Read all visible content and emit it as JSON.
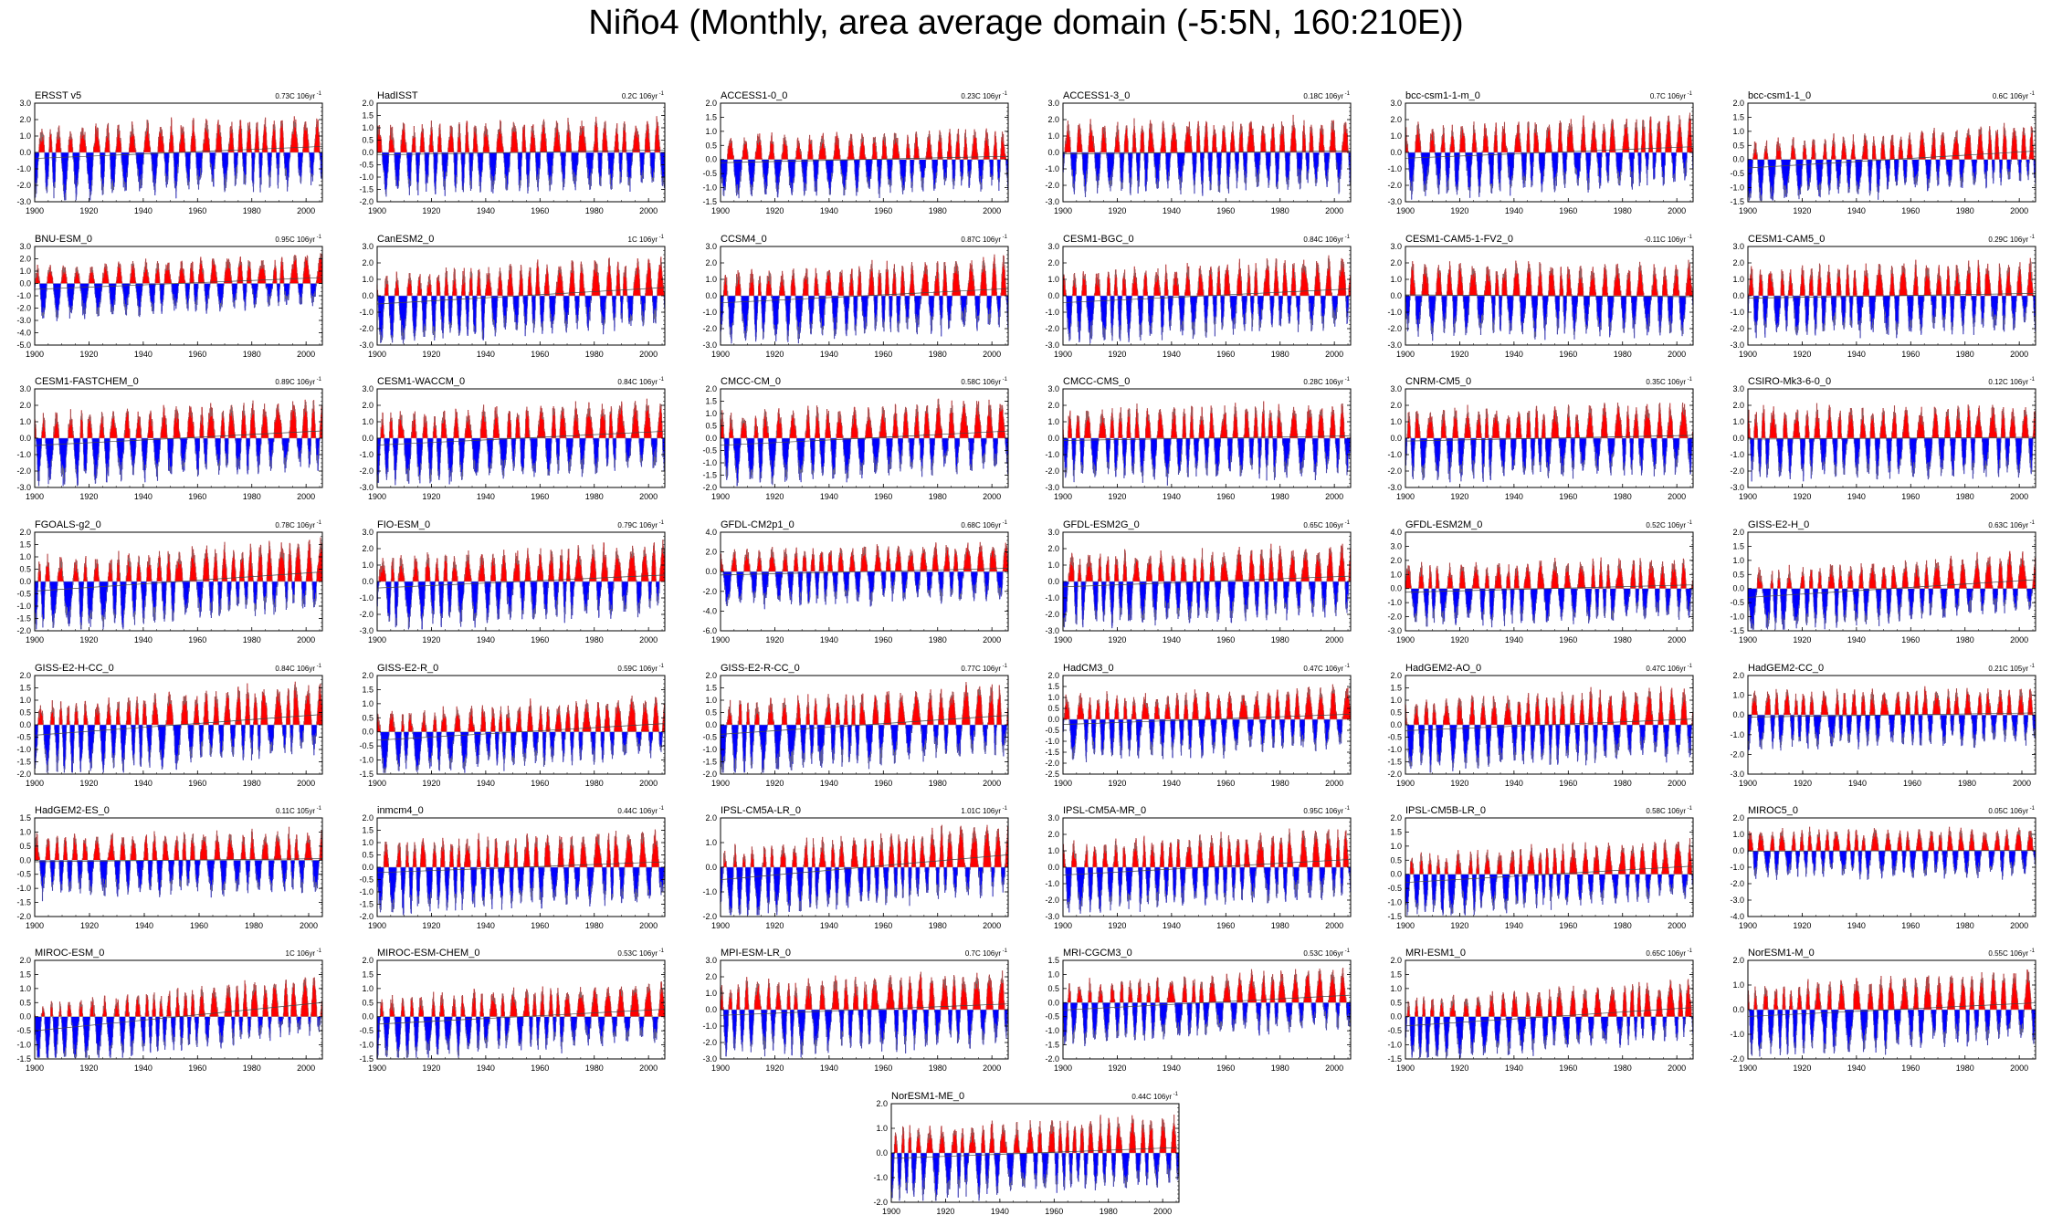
{
  "title": "Niño4 (Monthly, area average domain (-5:5N, 160:210E))",
  "colors": {
    "positive": "#ff0000",
    "negative": "#0000ff",
    "line": "#000000",
    "zero": "#000000"
  },
  "x_ticks": [
    "1900",
    "1920",
    "1940",
    "1960",
    "1980",
    "2000"
  ],
  "chart_data": [
    {
      "type": "area",
      "name": "ERSST v5",
      "trend": "0.73C 106yr",
      "yticks": [
        "3.0",
        "2.0",
        "1.0",
        "0.0",
        "-1.0",
        "-2.0",
        "-3.0"
      ],
      "ylim": [
        -3,
        3
      ],
      "xlim": [
        1900,
        2006
      ]
    },
    {
      "type": "area",
      "name": "HadISST",
      "trend": "0.2C 106yr",
      "yticks": [
        "2.0",
        "1.5",
        "1.0",
        "0.5",
        "0.0",
        "-0.5",
        "-1.0",
        "-1.5",
        "-2.0"
      ],
      "ylim": [
        -2,
        2
      ],
      "xlim": [
        1900,
        2006
      ]
    },
    {
      "type": "area",
      "name": "ACCESS1-0_0",
      "trend": "0.23C 106yr",
      "yticks": [
        "2.0",
        "1.5",
        "1.0",
        "0.5",
        "0.0",
        "-0.5",
        "-1.0",
        "-1.5"
      ],
      "ylim": [
        -1.5,
        2
      ],
      "xlim": [
        1900,
        2006
      ]
    },
    {
      "type": "area",
      "name": "ACCESS1-3_0",
      "trend": "0.18C 106yr",
      "yticks": [
        "3.0",
        "2.0",
        "1.0",
        "0.0",
        "-1.0",
        "-2.0",
        "-3.0"
      ],
      "ylim": [
        -3,
        3
      ],
      "xlim": [
        1900,
        2006
      ]
    },
    {
      "type": "area",
      "name": "bcc-csm1-1-m_0",
      "trend": "0.7C 106yr",
      "yticks": [
        "3.0",
        "2.0",
        "1.0",
        "0.0",
        "-1.0",
        "-2.0",
        "-3.0"
      ],
      "ylim": [
        -3,
        3
      ],
      "xlim": [
        1900,
        2006
      ]
    },
    {
      "type": "area",
      "name": "bcc-csm1-1_0",
      "trend": "0.6C 106yr",
      "yticks": [
        "2.0",
        "1.5",
        "1.0",
        "0.5",
        "0.0",
        "-0.5",
        "-1.0",
        "-1.5"
      ],
      "ylim": [
        -1.5,
        2
      ],
      "xlim": [
        1900,
        2006
      ]
    },
    {
      "type": "area",
      "name": "BNU-ESM_0",
      "trend": "0.95C 106yr",
      "yticks": [
        "3.0",
        "2.0",
        "1.0",
        "0.0",
        "-1.0",
        "-2.0",
        "-3.0",
        "-4.0",
        "-5.0"
      ],
      "ylim": [
        -5,
        3
      ],
      "xlim": [
        1900,
        2006
      ]
    },
    {
      "type": "area",
      "name": "CanESM2_0",
      "trend": "1C 106yr",
      "yticks": [
        "3.0",
        "2.0",
        "1.0",
        "0.0",
        "-1.0",
        "-2.0",
        "-3.0"
      ],
      "ylim": [
        -3,
        3
      ],
      "xlim": [
        1900,
        2006
      ]
    },
    {
      "type": "area",
      "name": "CCSM4_0",
      "trend": "0.87C 106yr",
      "yticks": [
        "3.0",
        "2.0",
        "1.0",
        "0.0",
        "-1.0",
        "-2.0",
        "-3.0"
      ],
      "ylim": [
        -3,
        3
      ],
      "xlim": [
        1900,
        2006
      ]
    },
    {
      "type": "area",
      "name": "CESM1-BGC_0",
      "trend": "0.84C 106yr",
      "yticks": [
        "3.0",
        "2.0",
        "1.0",
        "0.0",
        "-1.0",
        "-2.0",
        "-3.0"
      ],
      "ylim": [
        -3,
        3
      ],
      "xlim": [
        1900,
        2006
      ]
    },
    {
      "type": "area",
      "name": "CESM1-CAM5-1-FV2_0",
      "trend": "-0.11C 106yr",
      "yticks": [
        "3.0",
        "2.0",
        "1.0",
        "0.0",
        "-1.0",
        "-2.0",
        "-3.0"
      ],
      "ylim": [
        -3,
        3
      ],
      "xlim": [
        1900,
        2006
      ]
    },
    {
      "type": "area",
      "name": "CESM1-CAM5_0",
      "trend": "0.29C 106yr",
      "yticks": [
        "3.0",
        "2.0",
        "1.0",
        "0.0",
        "-1.0",
        "-2.0",
        "-3.0"
      ],
      "ylim": [
        -3,
        3
      ],
      "xlim": [
        1900,
        2006
      ]
    },
    {
      "type": "area",
      "name": "CESM1-FASTCHEM_0",
      "trend": "0.89C 106yr",
      "yticks": [
        "3.0",
        "2.0",
        "1.0",
        "0.0",
        "-1.0",
        "-2.0",
        "-3.0"
      ],
      "ylim": [
        -3,
        3
      ],
      "xlim": [
        1900,
        2006
      ]
    },
    {
      "type": "area",
      "name": "CESM1-WACCM_0",
      "trend": "0.84C 106yr",
      "yticks": [
        "3.0",
        "2.0",
        "1.0",
        "0.0",
        "-1.0",
        "-2.0",
        "-3.0"
      ],
      "ylim": [
        -3,
        3
      ],
      "xlim": [
        1900,
        2006
      ]
    },
    {
      "type": "area",
      "name": "CMCC-CM_0",
      "trend": "0.58C 106yr",
      "yticks": [
        "2.0",
        "1.5",
        "1.0",
        "0.5",
        "0.0",
        "-0.5",
        "-1.0",
        "-1.5",
        "-2.0"
      ],
      "ylim": [
        -2,
        2
      ],
      "xlim": [
        1900,
        2006
      ]
    },
    {
      "type": "area",
      "name": "CMCC-CMS_0",
      "trend": "0.28C 106yr",
      "yticks": [
        "3.0",
        "2.0",
        "1.0",
        "0.0",
        "-1.0",
        "-2.0",
        "-3.0"
      ],
      "ylim": [
        -3,
        3
      ],
      "xlim": [
        1900,
        2006
      ]
    },
    {
      "type": "area",
      "name": "CNRM-CM5_0",
      "trend": "0.35C 106yr",
      "yticks": [
        "3.0",
        "2.0",
        "1.0",
        "0.0",
        "-1.0",
        "-2.0",
        "-3.0"
      ],
      "ylim": [
        -3,
        3
      ],
      "xlim": [
        1900,
        2006
      ]
    },
    {
      "type": "area",
      "name": "CSIRO-Mk3-6-0_0",
      "trend": "0.12C 106yr",
      "yticks": [
        "3.0",
        "2.0",
        "1.0",
        "0.0",
        "-1.0",
        "-2.0",
        "-3.0"
      ],
      "ylim": [
        -3,
        3
      ],
      "xlim": [
        1900,
        2006
      ]
    },
    {
      "type": "area",
      "name": "FGOALS-g2_0",
      "trend": "0.78C 106yr",
      "yticks": [
        "2.0",
        "1.5",
        "1.0",
        "0.5",
        "0.0",
        "-0.5",
        "-1.0",
        "-1.5",
        "-2.0"
      ],
      "ylim": [
        -2,
        2
      ],
      "xlim": [
        1900,
        2006
      ]
    },
    {
      "type": "area",
      "name": "FIO-ESM_0",
      "trend": "0.79C 106yr",
      "yticks": [
        "3.0",
        "2.0",
        "1.0",
        "0.0",
        "-1.0",
        "-2.0",
        "-3.0"
      ],
      "ylim": [
        -3,
        3
      ],
      "xlim": [
        1900,
        2006
      ]
    },
    {
      "type": "area",
      "name": "GFDL-CM2p1_0",
      "trend": "0.68C 106yr",
      "yticks": [
        "4.0",
        "2.0",
        "0.0",
        "-2.0",
        "-4.0",
        "-6.0"
      ],
      "ylim": [
        -6,
        4
      ],
      "xlim": [
        1900,
        2006
      ]
    },
    {
      "type": "area",
      "name": "GFDL-ESM2G_0",
      "trend": "0.65C 106yr",
      "yticks": [
        "3.0",
        "2.0",
        "1.0",
        "0.0",
        "-1.0",
        "-2.0",
        "-3.0"
      ],
      "ylim": [
        -3,
        3
      ],
      "xlim": [
        1900,
        2006
      ]
    },
    {
      "type": "area",
      "name": "GFDL-ESM2M_0",
      "trend": "0.52C 106yr",
      "yticks": [
        "4.0",
        "3.0",
        "2.0",
        "1.0",
        "0.0",
        "-1.0",
        "-2.0",
        "-3.0"
      ],
      "ylim": [
        -3,
        4
      ],
      "xlim": [
        1900,
        2006
      ]
    },
    {
      "type": "area",
      "name": "GISS-E2-H_0",
      "trend": "0.63C 106yr",
      "yticks": [
        "2.0",
        "1.5",
        "1.0",
        "0.5",
        "0.0",
        "-0.5",
        "-1.0",
        "-1.5"
      ],
      "ylim": [
        -1.5,
        2
      ],
      "xlim": [
        1900,
        2006
      ]
    },
    {
      "type": "area",
      "name": "GISS-E2-H-CC_0",
      "trend": "0.84C 106yr",
      "yticks": [
        "2.0",
        "1.5",
        "1.0",
        "0.5",
        "0.0",
        "-0.5",
        "-1.0",
        "-1.5",
        "-2.0"
      ],
      "ylim": [
        -2,
        2
      ],
      "xlim": [
        1900,
        2006
      ]
    },
    {
      "type": "area",
      "name": "GISS-E2-R_0",
      "trend": "0.59C 106yr",
      "yticks": [
        "2.0",
        "1.5",
        "1.0",
        "0.5",
        "0.0",
        "-0.5",
        "-1.0",
        "-1.5"
      ],
      "ylim": [
        -1.5,
        2
      ],
      "xlim": [
        1900,
        2006
      ]
    },
    {
      "type": "area",
      "name": "GISS-E2-R-CC_0",
      "trend": "0.77C 106yr",
      "yticks": [
        "2.0",
        "1.5",
        "1.0",
        "0.5",
        "0.0",
        "-0.5",
        "-1.0",
        "-1.5",
        "-2.0"
      ],
      "ylim": [
        -2,
        2
      ],
      "xlim": [
        1900,
        2006
      ]
    },
    {
      "type": "area",
      "name": "HadCM3_0",
      "trend": "0.47C 106yr",
      "yticks": [
        "2.0",
        "1.5",
        "1.0",
        "0.5",
        "0.0",
        "-0.5",
        "-1.0",
        "-1.5",
        "-2.0",
        "-2.5"
      ],
      "ylim": [
        -2.5,
        2
      ],
      "xlim": [
        1900,
        2006
      ]
    },
    {
      "type": "area",
      "name": "HadGEM2-AO_0",
      "trend": "0.47C 106yr",
      "yticks": [
        "2.0",
        "1.5",
        "1.0",
        "0.5",
        "0.0",
        "-0.5",
        "-1.0",
        "-1.5",
        "-2.0"
      ],
      "ylim": [
        -2,
        2
      ],
      "xlim": [
        1900,
        2006
      ]
    },
    {
      "type": "area",
      "name": "HadGEM2-CC_0",
      "trend": "0.21C 105yr",
      "yticks": [
        "2.0",
        "1.0",
        "0.0",
        "-1.0",
        "-2.0",
        "-3.0"
      ],
      "ylim": [
        -3,
        2
      ],
      "xlim": [
        1900,
        2005
      ]
    },
    {
      "type": "area",
      "name": "HadGEM2-ES_0",
      "trend": "0.11C 105yr",
      "yticks": [
        "1.5",
        "1.0",
        "0.5",
        "0.0",
        "-0.5",
        "-1.0",
        "-1.5",
        "-2.0"
      ],
      "ylim": [
        -2,
        1.5
      ],
      "xlim": [
        1900,
        2005
      ]
    },
    {
      "type": "area",
      "name": "inmcm4_0",
      "trend": "0.44C 106yr",
      "yticks": [
        "2.0",
        "1.5",
        "1.0",
        "0.5",
        "0.0",
        "-0.5",
        "-1.0",
        "-1.5",
        "-2.0"
      ],
      "ylim": [
        -2,
        2
      ],
      "xlim": [
        1900,
        2006
      ]
    },
    {
      "type": "area",
      "name": "IPSL-CM5A-LR_0",
      "trend": "1.01C 106yr",
      "yticks": [
        "2.0",
        "1.0",
        "0.0",
        "-1.0",
        "-2.0"
      ],
      "ylim": [
        -2,
        2
      ],
      "xlim": [
        1900,
        2006
      ]
    },
    {
      "type": "area",
      "name": "IPSL-CM5A-MR_0",
      "trend": "0.95C 106yr",
      "yticks": [
        "3.0",
        "2.0",
        "1.0",
        "0.0",
        "-1.0",
        "-2.0",
        "-3.0"
      ],
      "ylim": [
        -3,
        3
      ],
      "xlim": [
        1900,
        2006
      ]
    },
    {
      "type": "area",
      "name": "IPSL-CM5B-LR_0",
      "trend": "0.58C 106yr",
      "yticks": [
        "2.0",
        "1.5",
        "1.0",
        "0.5",
        "0.0",
        "-0.5",
        "-1.0",
        "-1.5"
      ],
      "ylim": [
        -1.5,
        2
      ],
      "xlim": [
        1900,
        2006
      ]
    },
    {
      "type": "area",
      "name": "MIROC5_0",
      "trend": "0.05C 106yr",
      "yticks": [
        "2.0",
        "1.0",
        "0.0",
        "-1.0",
        "-2.0",
        "-3.0",
        "-4.0"
      ],
      "ylim": [
        -4,
        2
      ],
      "xlim": [
        1900,
        2006
      ]
    },
    {
      "type": "area",
      "name": "MIROC-ESM_0",
      "trend": "1C 106yr",
      "yticks": [
        "2.0",
        "1.5",
        "1.0",
        "0.5",
        "0.0",
        "-0.5",
        "-1.0",
        "-1.5"
      ],
      "ylim": [
        -1.5,
        2
      ],
      "xlim": [
        1900,
        2006
      ]
    },
    {
      "type": "area",
      "name": "MIROC-ESM-CHEM_0",
      "trend": "0.53C 106yr",
      "yticks": [
        "2.0",
        "1.5",
        "1.0",
        "0.5",
        "0.0",
        "-0.5",
        "-1.0",
        "-1.5"
      ],
      "ylim": [
        -1.5,
        2
      ],
      "xlim": [
        1900,
        2006
      ]
    },
    {
      "type": "area",
      "name": "MPI-ESM-LR_0",
      "trend": "0.7C 106yr",
      "yticks": [
        "3.0",
        "2.0",
        "1.0",
        "0.0",
        "-1.0",
        "-2.0",
        "-3.0"
      ],
      "ylim": [
        -3,
        3
      ],
      "xlim": [
        1900,
        2006
      ]
    },
    {
      "type": "area",
      "name": "MRI-CGCM3_0",
      "trend": "0.53C 106yr",
      "yticks": [
        "1.5",
        "1.0",
        "0.5",
        "0.0",
        "-0.5",
        "-1.0",
        "-1.5",
        "-2.0"
      ],
      "ylim": [
        -2,
        1.5
      ],
      "xlim": [
        1900,
        2006
      ]
    },
    {
      "type": "area",
      "name": "MRI-ESM1_0",
      "trend": "0.65C 106yr",
      "yticks": [
        "2.0",
        "1.5",
        "1.0",
        "0.5",
        "0.0",
        "-0.5",
        "-1.0",
        "-1.5"
      ],
      "ylim": [
        -1.5,
        2
      ],
      "xlim": [
        1900,
        2006
      ]
    },
    {
      "type": "area",
      "name": "NorESM1-M_0",
      "trend": "0.55C 106yr",
      "yticks": [
        "2.0",
        "1.0",
        "0.0",
        "-1.0",
        "-2.0"
      ],
      "ylim": [
        -2,
        2
      ],
      "xlim": [
        1900,
        2006
      ]
    },
    {
      "type": "area",
      "name": "NorESM1-ME_0",
      "trend": "0.44C 106yr",
      "yticks": [
        "2.0",
        "1.0",
        "0.0",
        "-1.0",
        "-2.0"
      ],
      "ylim": [
        -2,
        2
      ],
      "xlim": [
        1900,
        2006
      ]
    }
  ]
}
